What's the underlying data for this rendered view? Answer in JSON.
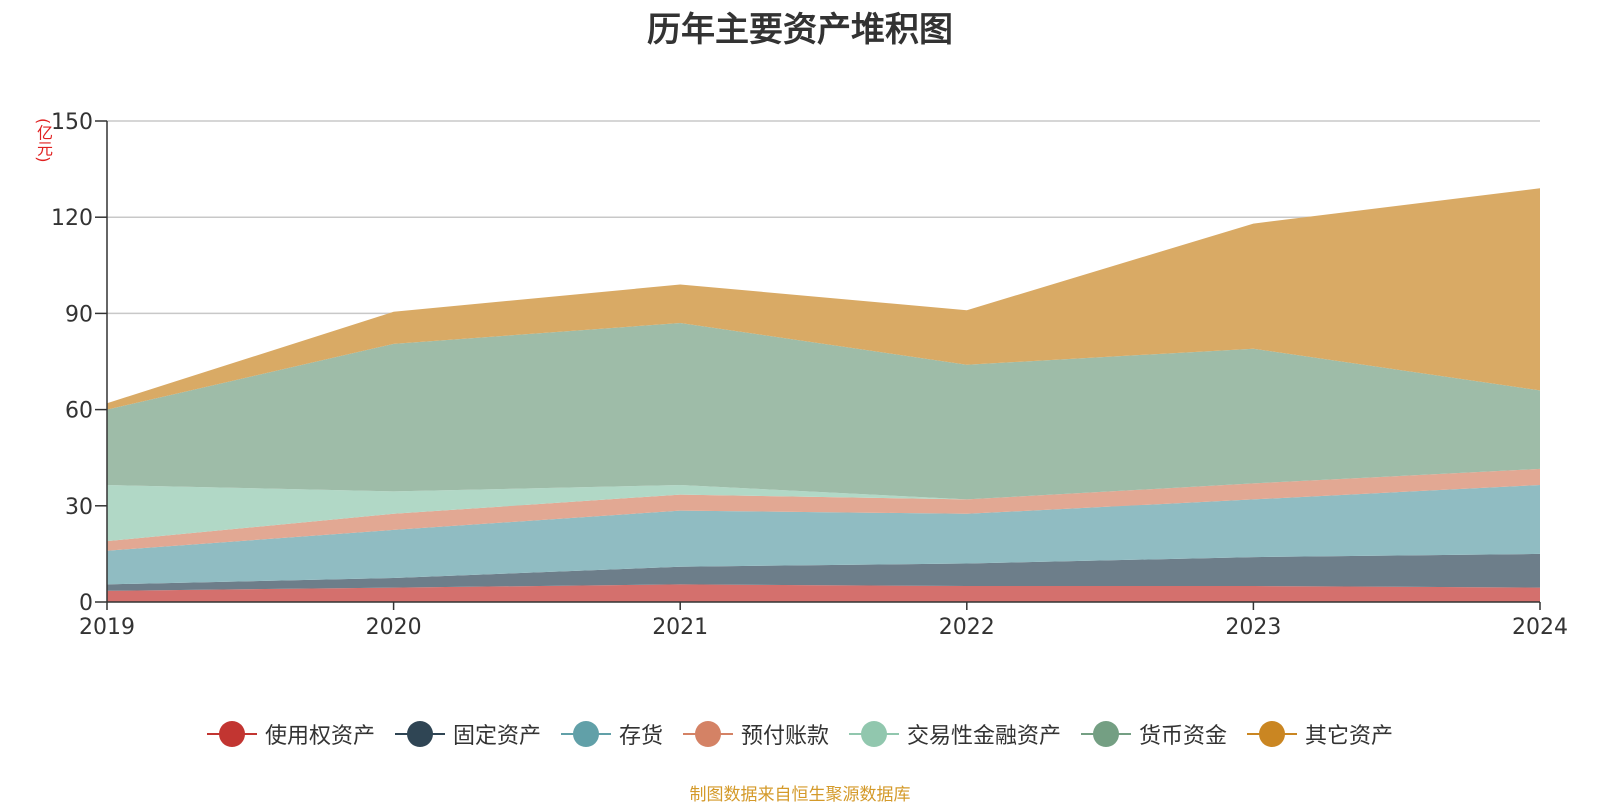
{
  "chart_data": {
    "type": "area",
    "stacked": true,
    "title": "历年主要资产堆积图",
    "unit_label": "(亿元)",
    "categories": [
      "2019",
      "2020",
      "2021",
      "2022",
      "2023",
      "2024"
    ],
    "ylim": [
      0,
      150
    ],
    "yticks": [
      0,
      30,
      60,
      90,
      120,
      150
    ],
    "grid": true,
    "legend_position": "bottom",
    "series": [
      {
        "name": "使用权资产",
        "color": "#c23531",
        "fill": "#d4706d",
        "values": [
          3.5,
          4.5,
          5.5,
          5,
          5,
          4.5
        ]
      },
      {
        "name": "固定资产",
        "color": "#2f4554",
        "fill": "#6d7e8a",
        "values": [
          2,
          3,
          5.5,
          7,
          9,
          10.5
        ]
      },
      {
        "name": "存货",
        "color": "#61a0a8",
        "fill": "#90bcc2",
        "values": [
          10.5,
          15,
          17.5,
          15.5,
          18,
          21.5
        ]
      },
      {
        "name": "预付账款",
        "color": "#d48265",
        "fill": "#e2a893",
        "values": [
          3,
          5,
          5,
          4.5,
          5,
          5
        ]
      },
      {
        "name": "交易性金融资产",
        "color": "#91c7ae",
        "fill": "#b1d8c6",
        "values": [
          17.5,
          7,
          3,
          0,
          0,
          0
        ]
      },
      {
        "name": "货币资金",
        "color": "#749f83",
        "fill": "#9ebca8",
        "values": [
          23.5,
          46,
          50.5,
          42,
          42,
          24.5
        ]
      },
      {
        "name": "其它资产",
        "color": "#ca8622",
        "fill": "#d9aa65",
        "values": [
          2,
          10,
          12,
          17,
          39,
          63
        ]
      }
    ]
  },
  "source_text": "制图数据来自恒生聚源数据库"
}
